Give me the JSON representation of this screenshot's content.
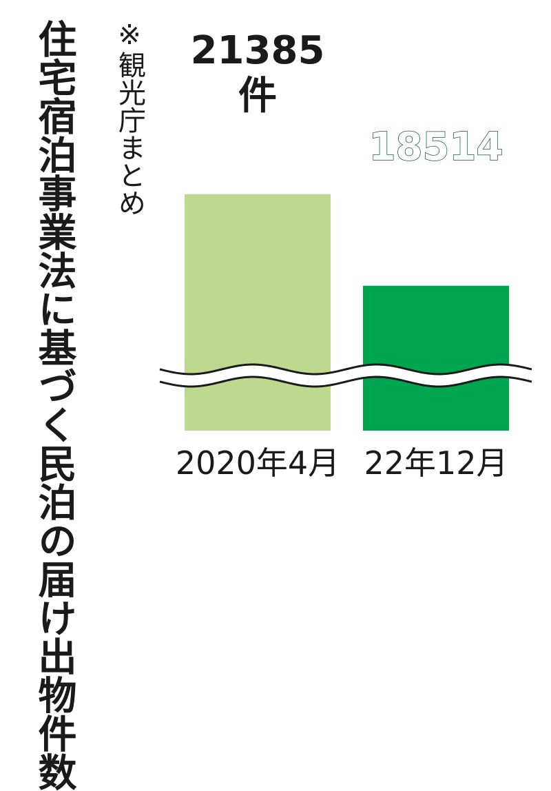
{
  "chart_data": {
    "type": "bar",
    "title": "住宅宿泊事業法に基づく民泊の届け出物件数",
    "source": "※観光庁まとめ",
    "categories": [
      "2020年4月",
      "22年12月"
    ],
    "values": [
      21385,
      18514
    ],
    "value_labels": [
      "21385",
      "18514"
    ],
    "unit": "件",
    "axis_break": true,
    "colors": [
      "#bcd98f",
      "#00a550"
    ],
    "label_colors": [
      "#1a1a1a",
      "#ffffff"
    ]
  }
}
